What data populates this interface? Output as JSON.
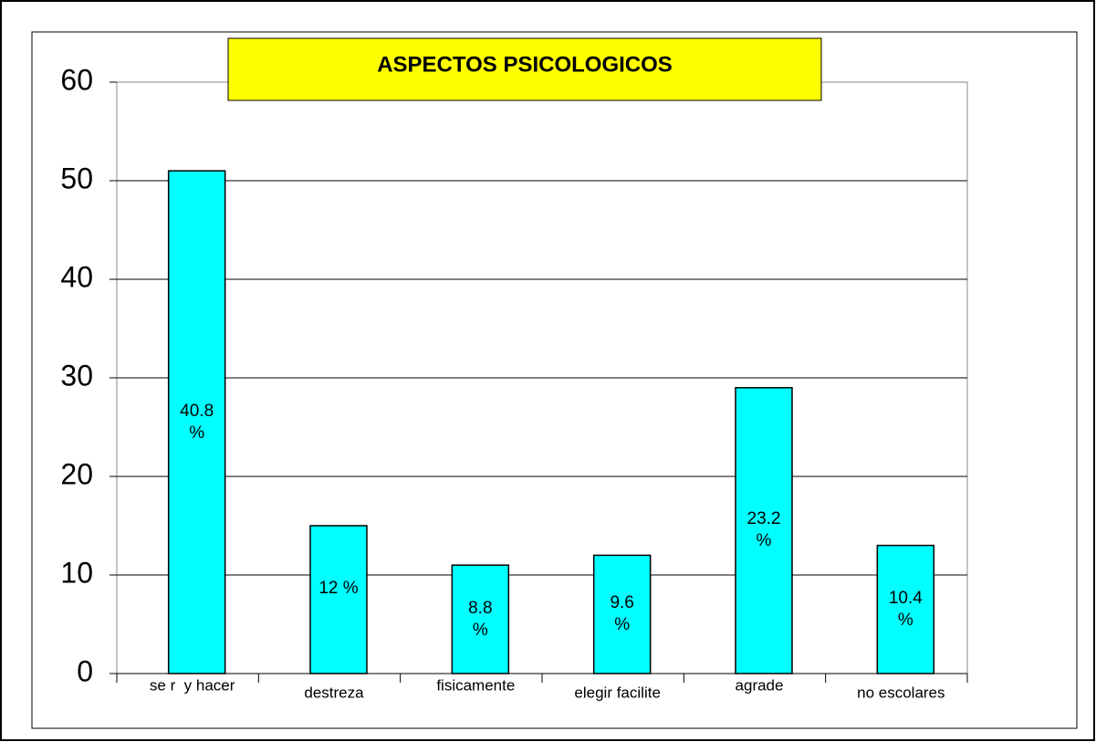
{
  "chart_data": {
    "type": "bar",
    "title": "ASPECTOS PSICOLOGICOS",
    "categories": [
      "se r  y hacer",
      "destreza",
      "fisicamente",
      "elegir facilite",
      "agrade",
      "no escolares"
    ],
    "values": [
      51,
      15,
      11,
      12,
      29,
      13
    ],
    "annotations": [
      "40.8 %",
      "12 %",
      "8.8 %",
      "9.6 %",
      "23.2 %",
      "10.4 %"
    ],
    "color": "#00ffff",
    "ylim": [
      0,
      60
    ],
    "yticks": [
      0,
      10,
      20,
      30,
      40,
      50,
      60
    ],
    "grid": true
  }
}
